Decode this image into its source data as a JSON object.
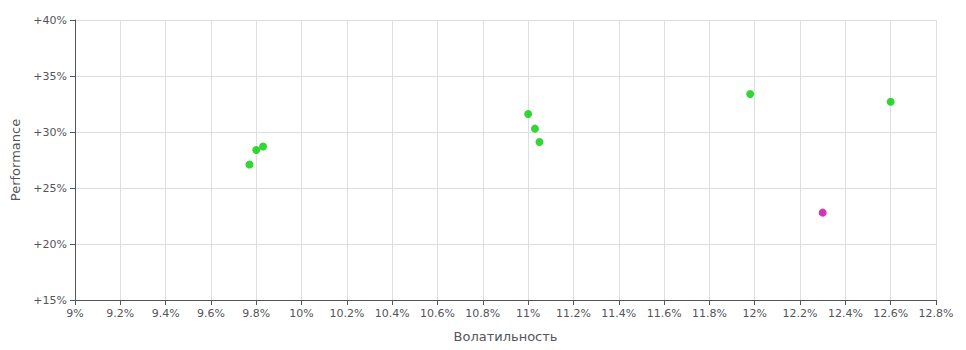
{
  "chart_data": {
    "type": "scatter",
    "xlabel": "Волатильность",
    "ylabel": "Performance",
    "xlim": [
      0.09,
      0.128
    ],
    "ylim": [
      0.15,
      0.4
    ],
    "xticks": [
      {
        "value": 0.09,
        "label": "9%"
      },
      {
        "value": 0.092,
        "label": "9.2%"
      },
      {
        "value": 0.094,
        "label": "9.4%"
      },
      {
        "value": 0.096,
        "label": "9.6%"
      },
      {
        "value": 0.098,
        "label": "9.8%"
      },
      {
        "value": 0.1,
        "label": "10%"
      },
      {
        "value": 0.102,
        "label": "10.2%"
      },
      {
        "value": 0.104,
        "label": "10.4%"
      },
      {
        "value": 0.106,
        "label": "10.6%"
      },
      {
        "value": 0.108,
        "label": "10.8%"
      },
      {
        "value": 0.11,
        "label": "11%"
      },
      {
        "value": 0.112,
        "label": "11.2%"
      },
      {
        "value": 0.114,
        "label": "11.4%"
      },
      {
        "value": 0.116,
        "label": "11.6%"
      },
      {
        "value": 0.118,
        "label": "11.8%"
      },
      {
        "value": 0.12,
        "label": "12%"
      },
      {
        "value": 0.122,
        "label": "12.2%"
      },
      {
        "value": 0.124,
        "label": "12.4%"
      },
      {
        "value": 0.126,
        "label": "12.6%"
      },
      {
        "value": 0.128,
        "label": "12.8%"
      }
    ],
    "yticks": [
      {
        "value": 0.15,
        "label": "+15%"
      },
      {
        "value": 0.2,
        "label": "+20%"
      },
      {
        "value": 0.25,
        "label": "+25%"
      },
      {
        "value": 0.3,
        "label": "+30%"
      },
      {
        "value": 0.35,
        "label": "+35%"
      },
      {
        "value": 0.4,
        "label": "+40%"
      }
    ],
    "series": [
      {
        "color": "#00cc00",
        "values": [
          [
            0.098,
            0.284
          ],
          [
            0.0983,
            0.287
          ],
          [
            0.0977,
            0.271
          ],
          [
            0.11,
            0.316
          ],
          [
            0.1103,
            0.303
          ],
          [
            0.1105,
            0.291
          ],
          [
            0.1198,
            0.334
          ],
          [
            0.126,
            0.327
          ]
        ]
      },
      {
        "color": "#cc00aa",
        "values": [
          [
            0.123,
            0.228
          ]
        ]
      }
    ],
    "grid": true
  }
}
